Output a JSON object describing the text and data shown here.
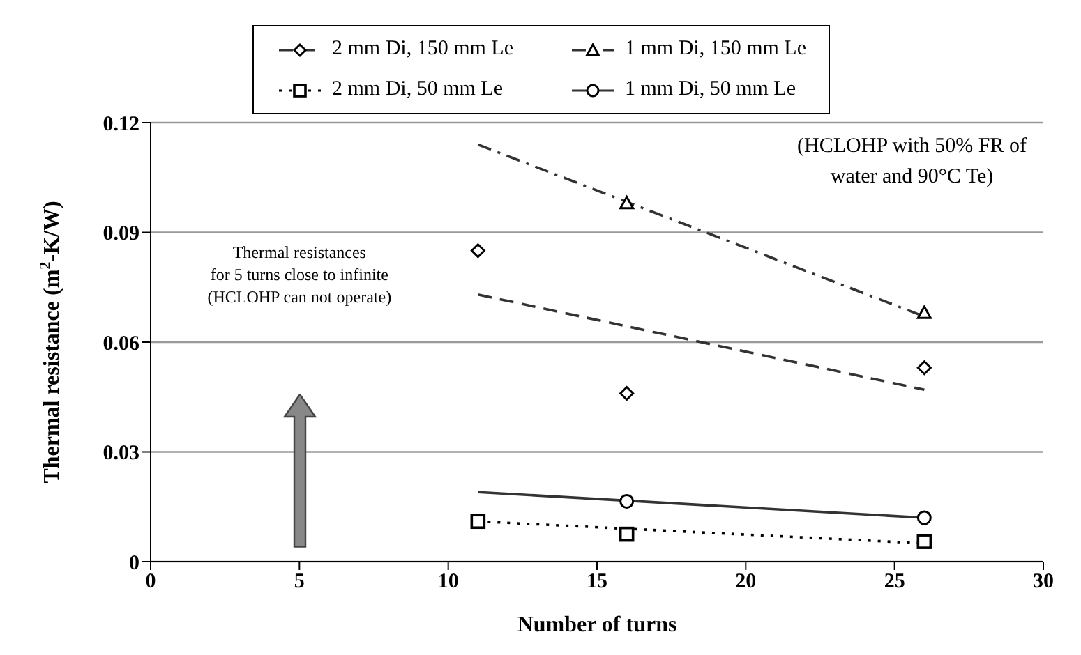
{
  "chart_data": {
    "type": "scatter",
    "xlabel": "Number of turns",
    "ylabel": "Thermal resistance (m$^{2}$-K/W)",
    "xlim": [
      0,
      30
    ],
    "xticks": [
      0,
      5,
      10,
      15,
      20,
      25,
      30
    ],
    "ylim": [
      0,
      0.12
    ],
    "yticks": [
      0,
      0.03,
      0.06,
      0.09,
      0.12
    ],
    "grid": "y",
    "legend": "top",
    "series": [
      {
        "name": "2 mm Di, 150 mm Le",
        "marker": "diamond",
        "color": "#000000",
        "x": [
          11,
          16,
          26
        ],
        "values": [
          0.085,
          0.046,
          0.053
        ]
      },
      {
        "type": "line",
        "line_style": "dashed",
        "color": "#333333",
        "x": [
          11,
          26
        ],
        "values": [
          0.073,
          0.047
        ]
      },
      {
        "name": "1 mm Di, 150 mm Le",
        "marker": "triangle",
        "color": "#000000",
        "x": [
          16,
          26
        ],
        "values": [
          0.098,
          0.068
        ]
      },
      {
        "type": "line",
        "line_style": "dashdot",
        "color": "#333333",
        "x": [
          11,
          26
        ],
        "values": [
          0.114,
          0.067
        ]
      },
      {
        "name": "2 mm Di, 50 mm Le",
        "marker": "square",
        "color": "#000000",
        "x": [
          11,
          16,
          26
        ],
        "values": [
          0.011,
          0.0075,
          0.0055
        ]
      },
      {
        "type": "line",
        "line_style": "dotted",
        "color": "#000000",
        "x": [
          11,
          26
        ],
        "values": [
          0.011,
          0.005
        ]
      },
      {
        "name": "1 mm Di, 50 mm Le",
        "marker": "circle",
        "color": "#000000",
        "x": [
          16,
          26
        ],
        "values": [
          0.0165,
          0.012
        ]
      },
      {
        "type": "line",
        "line_style": "solid",
        "color": "#333333",
        "x": [
          11,
          26
        ],
        "values": [
          0.019,
          0.012
        ]
      }
    ],
    "annotations": [
      "Thermal resistances\nfor 5 turns close to infinite\n(HCLOHP can not operate)",
      "(HCLOHP with 50% FR of\nwater and 90°C Te)"
    ]
  }
}
